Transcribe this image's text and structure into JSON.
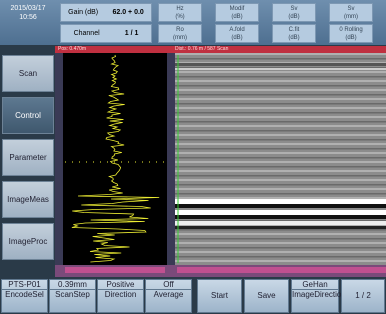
{
  "status": {
    "date": "2015/03/17",
    "time": "10:56"
  },
  "header": {
    "gain_label": "Gain (dB)",
    "gain_value": "62.0 + 0.0",
    "channel_label": "Channel",
    "channel_value": "1 / 1",
    "params": [
      {
        "label": "Hz",
        "unit": "(%)"
      },
      {
        "label": "Modif",
        "unit": "(dB)"
      },
      {
        "label": "Sv",
        "unit": "(dB)"
      },
      {
        "label": "Sv",
        "unit": "(mm)"
      },
      {
        "label": "Ro",
        "unit": "(mm)"
      },
      {
        "label": "A.fold",
        "unit": "(dB)"
      },
      {
        "label": "C.fit",
        "unit": "(dB)"
      },
      {
        "label": "0 Rolling",
        "unit": "(dB)"
      }
    ]
  },
  "strip": {
    "left": "Pos: 0.470m",
    "right": "Dist.: 0.76 m / 587 Scan"
  },
  "menu": [
    "Scan",
    "Control",
    "Parameter",
    "ImageMeas",
    "ImageProc"
  ],
  "toolbar": {
    "settings": [
      {
        "value": "PTS-P01",
        "label": "EncodeSel"
      },
      {
        "value": "0.39mm",
        "label": "ScanStep"
      },
      {
        "value": "Positive",
        "label": "Direction"
      },
      {
        "value": "Off",
        "label": "Average"
      }
    ],
    "start": "Start",
    "save": "Save",
    "direction": {
      "value": "GeHan",
      "label": "ImageDirectio"
    },
    "page": "1 / 2"
  }
}
